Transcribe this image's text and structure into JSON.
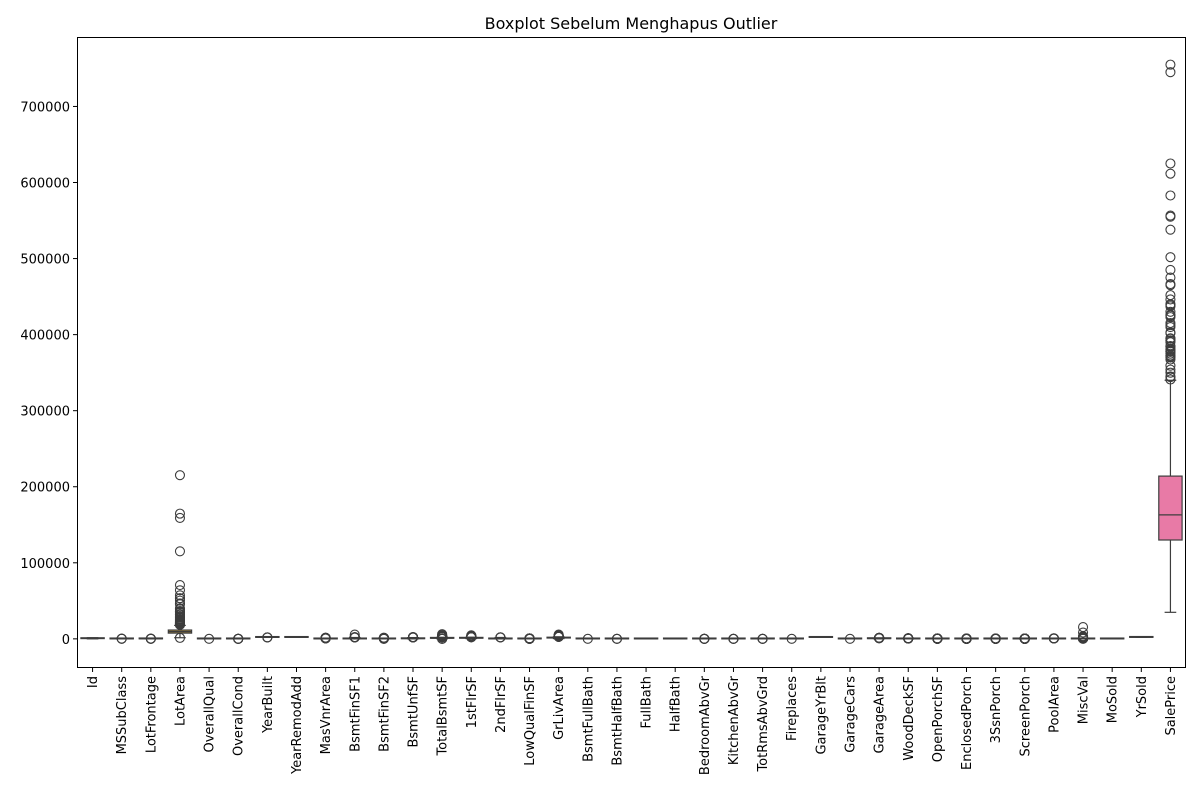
{
  "chart_data": {
    "type": "boxplot",
    "title": "Boxplot Sebelum Menghapus Outlier",
    "xlabel": "",
    "ylabel": "",
    "ylim": [
      -37000,
      790000
    ],
    "yticks": [
      0,
      100000,
      200000,
      300000,
      400000,
      500000,
      600000,
      700000
    ],
    "ytick_labels": [
      "0",
      "100000",
      "200000",
      "300000",
      "400000",
      "500000",
      "600000",
      "700000"
    ],
    "grid": false,
    "categories": [
      "Id",
      "MSSubClass",
      "LotFrontage",
      "LotArea",
      "OverallQual",
      "OverallCond",
      "YearBuilt",
      "YearRemodAdd",
      "MasVnrArea",
      "BsmtFinSF1",
      "BsmtFinSF2",
      "BsmtUnfSF",
      "TotalBsmtSF",
      "1stFlrSF",
      "2ndFlrSF",
      "LowQualFinSF",
      "GrLivArea",
      "BsmtFullBath",
      "BsmtHalfBath",
      "FullBath",
      "HalfBath",
      "BedroomAbvGr",
      "KitchenAbvGr",
      "TotRmsAbvGrd",
      "Fireplaces",
      "GarageYrBlt",
      "GarageCars",
      "GarageArea",
      "WoodDeckSF",
      "OpenPorchSF",
      "EnclosedPorch",
      "3SsnPorch",
      "ScreenPorch",
      "PoolArea",
      "MiscVal",
      "MoSold",
      "YrSold",
      "SalePrice"
    ],
    "colors": [
      "#e88a9b",
      "#e08b69",
      "#d59748",
      "#c09b3f",
      "#a9a33f",
      "#92a83e",
      "#6eae3f",
      "#3fb25a",
      "#3db07b",
      "#3bad92",
      "#3aab9f",
      "#3aaaaa",
      "#3ba8b6",
      "#3da5c3",
      "#3fa1d1",
      "#4a9ae0",
      "#6a91e6",
      "#8a89ea",
      "#a37ee9",
      "#b875e6",
      "#cb6ae0",
      "#dc62d2",
      "#e45fbf",
      "#e862ad",
      "#e9669b",
      "#e88a9b",
      "#e08b69",
      "#d59748",
      "#c09b3f",
      "#a9a33f",
      "#92a83e",
      "#6eae3f",
      "#3fb25a",
      "#3db07b",
      "#3bad92",
      "#3aab9f",
      "#3aaaaa",
      "#e87aa6"
    ],
    "boxes": [
      {
        "q1": 365,
        "median": 730,
        "q3": 1095,
        "whislo": 1,
        "whishi": 1460,
        "fliers": []
      },
      {
        "q1": 20,
        "median": 50,
        "q3": 70,
        "whislo": 20,
        "whishi": 145,
        "fliers": [
          160,
          180,
          190
        ]
      },
      {
        "q1": 59,
        "median": 69,
        "q3": 80,
        "whislo": 30,
        "whishi": 111,
        "fliers": [
          313,
          182,
          160,
          21
        ]
      },
      {
        "q1": 7554,
        "median": 9478,
        "q3": 11602,
        "whislo": 1491,
        "whishi": 17671,
        "fliers": [
          215245,
          164660,
          159000,
          115149,
          70761,
          63887,
          57200,
          53504,
          53227,
          50271,
          46589,
          45600,
          40094,
          39104,
          36500,
          35760,
          34650,
          32668,
          31770,
          29959,
          28698,
          27650,
          26178,
          25419,
          24682,
          23595,
          22950,
          21872,
          21000,
          20896,
          20544,
          19900,
          19378,
          18800,
          18450,
          1300
        ]
      },
      {
        "q1": 5,
        "median": 6,
        "q3": 7,
        "whislo": 2,
        "whishi": 10,
        "fliers": [
          1
        ]
      },
      {
        "q1": 5,
        "median": 5,
        "q3": 6,
        "whislo": 4,
        "whishi": 7,
        "fliers": [
          9,
          8,
          3,
          2,
          1
        ]
      },
      {
        "q1": 1954,
        "median": 1973,
        "q3": 2000,
        "whislo": 1885,
        "whishi": 2010,
        "fliers": [
          1880,
          1875,
          1872
        ]
      },
      {
        "q1": 1967,
        "median": 1994,
        "q3": 2004,
        "whislo": 1950,
        "whishi": 2010,
        "fliers": []
      },
      {
        "q1": 0,
        "median": 0,
        "q3": 166,
        "whislo": 0,
        "whishi": 415,
        "fliers": [
          1600,
          1378,
          1170,
          1129,
          1115,
          975,
          921,
          816,
          788,
          760,
          650,
          600,
          500
        ]
      },
      {
        "q1": 0,
        "median": 383,
        "q3": 712,
        "whislo": 0,
        "whishi": 1767,
        "fliers": [
          5644,
          2260,
          2188,
          2096,
          1904,
          1880,
          1810
        ]
      },
      {
        "q1": 0,
        "median": 0,
        "q3": 0,
        "whislo": 0,
        "whishi": 0,
        "fliers": [
          1474,
          1127,
          1120,
          1085,
          1061,
          1031,
          972,
          906,
          869,
          791,
          750,
          712,
          630,
          500,
          400,
          300,
          200,
          100
        ]
      },
      {
        "q1": 223,
        "median": 477,
        "q3": 808,
        "whislo": 0,
        "whishi": 1680,
        "fliers": [
          2336,
          2153,
          2121,
          2046,
          2042,
          2002,
          1935,
          1907,
          1869,
          1800
        ]
      },
      {
        "q1": 795,
        "median": 991,
        "q3": 1298,
        "whislo": 105,
        "whishi": 2046,
        "fliers": [
          6110,
          5000,
          4300,
          3200,
          3206,
          3138,
          3094,
          2633,
          2524,
          2444,
          2396,
          2216,
          2158,
          2136,
          2121,
          2110,
          0,
          0
        ]
      },
      {
        "q1": 882,
        "median": 1087,
        "q3": 1391,
        "whislo": 334,
        "whishi": 2155,
        "fliers": [
          4692,
          4000,
          3600,
          3228,
          3138,
          2633,
          2524,
          2444,
          2411,
          2402,
          2392,
          2364,
          2259,
          2207,
          2196
        ]
      },
      {
        "q1": 0,
        "median": 0,
        "q3": 728,
        "whislo": 0,
        "whishi": 1818,
        "fliers": [
          2065,
          1872,
          1836
        ]
      },
      {
        "q1": 0,
        "median": 0,
        "q3": 0,
        "whislo": 0,
        "whishi": 0,
        "fliers": [
          572,
          528,
          515,
          514,
          513,
          481,
          473,
          420,
          397,
          392,
          390,
          384,
          371,
          360,
          234,
          232,
          205,
          156,
          120,
          80,
          53
        ]
      },
      {
        "q1": 1130,
        "median": 1464,
        "q3": 1777,
        "whislo": 334,
        "whishi": 2730,
        "fliers": [
          5642,
          4676,
          4476,
          4316,
          3627,
          3608,
          3493,
          3447,
          3395,
          3279,
          3238,
          3228,
          3222,
          3194,
          3140,
          3112,
          3086,
          3082,
          2945,
          2898,
          2872,
          2822,
          2810,
          2792,
          2784,
          2775,
          2728
        ]
      },
      {
        "q1": 0,
        "median": 0,
        "q3": 1,
        "whislo": 0,
        "whishi": 2,
        "fliers": [
          3
        ]
      },
      {
        "q1": 0,
        "median": 0,
        "q3": 0,
        "whislo": 0,
        "whishi": 0,
        "fliers": [
          2,
          1
        ]
      },
      {
        "q1": 1,
        "median": 2,
        "q3": 2,
        "whislo": 0,
        "whishi": 3,
        "fliers": []
      },
      {
        "q1": 0,
        "median": 0,
        "q3": 1,
        "whislo": 0,
        "whishi": 2,
        "fliers": []
      },
      {
        "q1": 2,
        "median": 3,
        "q3": 3,
        "whislo": 2,
        "whishi": 4,
        "fliers": [
          8,
          6,
          5,
          1,
          0
        ]
      },
      {
        "q1": 1,
        "median": 1,
        "q3": 1,
        "whislo": 1,
        "whishi": 1,
        "fliers": [
          3,
          2,
          0
        ]
      },
      {
        "q1": 5,
        "median": 6,
        "q3": 7,
        "whislo": 2,
        "whishi": 10,
        "fliers": [
          14,
          12,
          11
        ]
      },
      {
        "q1": 0,
        "median": 1,
        "q3": 1,
        "whislo": 0,
        "whishi": 2,
        "fliers": [
          3
        ]
      },
      {
        "q1": 1961,
        "median": 1980,
        "q3": 2002,
        "whislo": 1900,
        "whishi": 2010,
        "fliers": []
      },
      {
        "q1": 1,
        "median": 2,
        "q3": 2,
        "whislo": 0,
        "whishi": 3,
        "fliers": [
          4
        ]
      },
      {
        "q1": 334,
        "median": 480,
        "q3": 576,
        "whislo": 0,
        "whishi": 936,
        "fliers": [
          1418,
          1390,
          1356,
          1248,
          1220,
          1166,
          1134,
          1069,
          1053,
          1043,
          1025,
          1020,
          995,
          968,
          960,
          954,
          947
        ]
      },
      {
        "q1": 0,
        "median": 0,
        "q3": 168,
        "whislo": 0,
        "whishi": 420,
        "fliers": [
          857,
          736,
          728,
          670,
          668,
          635,
          586,
          576,
          550,
          519,
          517,
          503,
          486,
          474,
          441,
          431,
          428
        ]
      },
      {
        "q1": 0,
        "median": 25,
        "q3": 68,
        "whislo": 0,
        "whishi": 170,
        "fliers": [
          547,
          523,
          502,
          418,
          406,
          364,
          341,
          319,
          312,
          304,
          291,
          285,
          274,
          266,
          258,
          252,
          247,
          240,
          234,
          228,
          224,
          214,
          205,
          195,
          184,
          176
        ]
      },
      {
        "q1": 0,
        "median": 0,
        "q3": 0,
        "whislo": 0,
        "whishi": 0,
        "fliers": [
          552,
          386,
          330,
          318,
          301,
          294,
          291,
          286,
          280,
          272,
          264,
          252,
          248,
          240,
          236,
          230,
          224,
          214,
          202,
          192,
          180,
          170,
          164,
          156,
          150,
          144,
          136,
          130,
          120,
          112,
          100,
          90,
          77,
          60,
          40,
          20
        ]
      },
      {
        "q1": 0,
        "median": 0,
        "q3": 0,
        "whislo": 0,
        "whishi": 0,
        "fliers": [
          508,
          407,
          320,
          304,
          290,
          245,
          238,
          216,
          196,
          182,
          180,
          168,
          162,
          153,
          150,
          144,
          140,
          130,
          96,
          86,
          23
        ]
      },
      {
        "q1": 0,
        "median": 0,
        "q3": 0,
        "whislo": 0,
        "whishi": 0,
        "fliers": [
          480,
          440,
          410,
          396,
          385,
          374,
          350,
          322,
          312,
          291,
          288,
          280,
          273,
          266,
          259,
          252,
          245,
          238,
          234,
          224,
          216,
          210,
          200,
          198,
          192,
          189,
          184,
          180,
          175,
          170,
          165,
          160,
          155,
          150,
          144,
          140,
          130,
          126,
          120,
          111,
          100,
          95,
          90,
          80,
          63,
          60,
          53,
          40
        ]
      },
      {
        "q1": 0,
        "median": 0,
        "q3": 0,
        "whislo": 0,
        "whishi": 0,
        "fliers": [
          738,
          648,
          576,
          555,
          519,
          512,
          480
        ]
      },
      {
        "q1": 0,
        "median": 0,
        "q3": 0,
        "whislo": 0,
        "whishi": 0,
        "fliers": [
          15500,
          8300,
          3500,
          2500,
          2000,
          1300,
          1200,
          1150,
          800,
          700,
          650,
          620,
          600,
          560,
          500,
          480,
          450,
          400,
          350,
          54
        ]
      },
      {
        "q1": 5,
        "median": 6,
        "q3": 8,
        "whislo": 1,
        "whishi": 12,
        "fliers": []
      },
      {
        "q1": 2007,
        "median": 2008,
        "q3": 2009,
        "whislo": 2006,
        "whishi": 2010,
        "fliers": []
      },
      {
        "q1": 129975,
        "median": 163000,
        "q3": 214000,
        "whislo": 34900,
        "whishi": 340000,
        "fliers": [
          755000,
          745000,
          625000,
          611657,
          582933,
          556581,
          555000,
          538000,
          501837,
          485000,
          475000,
          466500,
          465000,
          451950,
          446261,
          440000,
          438780,
          437154,
          430000,
          426000,
          424870,
          423000,
          415298,
          412500,
          410000,
          402861,
          402000,
          395192,
          394617,
          392500,
          392000,
          390000,
          385000,
          384500,
          383970,
          381000,
          380000,
          378500,
          377500,
          377426,
          375000,
          372500,
          372402,
          370878,
          369900,
          367294,
          359100,
          354000,
          350000,
          345000,
          344133,
          341000
        ]
      }
    ]
  }
}
